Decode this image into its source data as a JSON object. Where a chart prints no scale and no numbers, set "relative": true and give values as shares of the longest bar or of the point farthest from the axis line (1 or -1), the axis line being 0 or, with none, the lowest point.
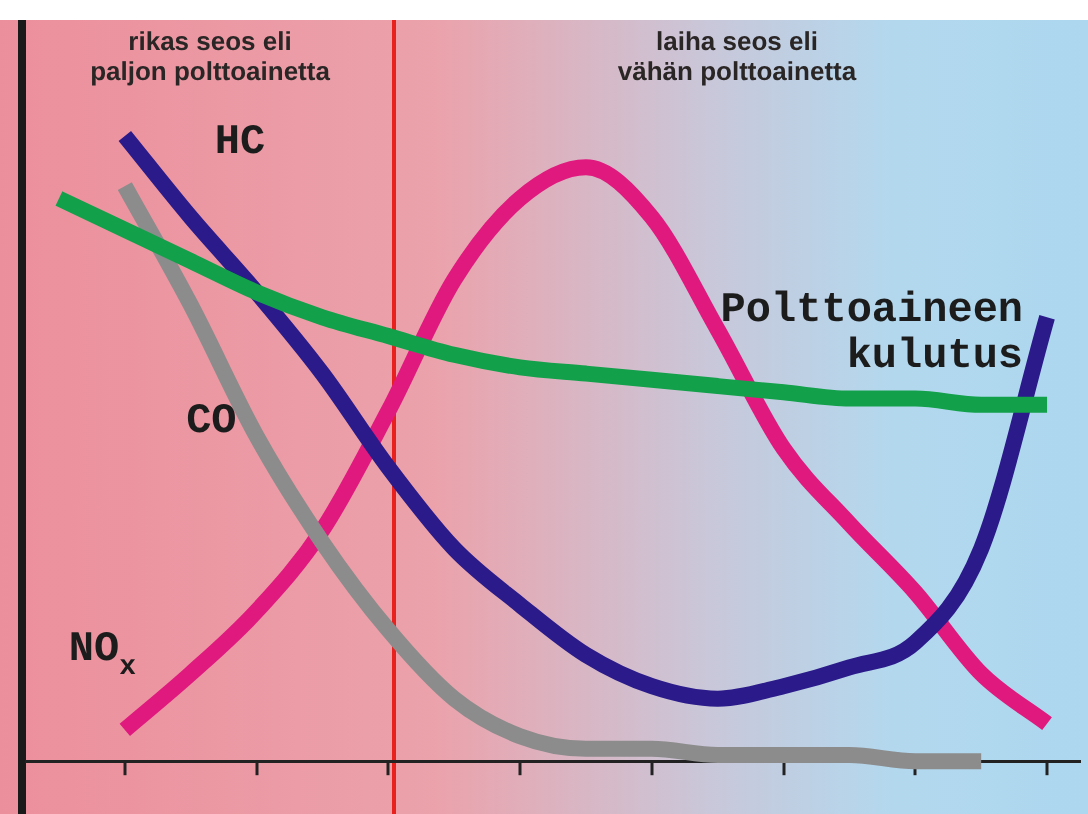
{
  "chart_data": {
    "type": "line",
    "relative": true,
    "grid": false,
    "legend": false,
    "marker": "none",
    "line_style": "solid",
    "categories": [
      null,
      null,
      null,
      null,
      null,
      null,
      null,
      null,
      null,
      null,
      null,
      null,
      null,
      null,
      null,
      null
    ],
    "series": [
      {
        "name": "Polttoaineen kulutus",
        "color": "#13a04a",
        "values": [
          0.9,
          0.85,
          0.8,
          0.75,
          0.71,
          0.68,
          0.65,
          0.63,
          0.62,
          0.61,
          0.6,
          0.59,
          0.58,
          0.58,
          0.57,
          0.57
        ]
      },
      {
        "name": "HC",
        "color": "#2a1a8a",
        "values": [
          null,
          1.0,
          0.87,
          0.75,
          0.62,
          0.47,
          0.34,
          0.25,
          0.17,
          0.12,
          0.1,
          0.12,
          0.15,
          0.19,
          0.34,
          0.71
        ]
      },
      {
        "name": "CO",
        "color": "#8c8c8c",
        "values": [
          null,
          0.92,
          0.73,
          0.52,
          0.35,
          0.21,
          0.1,
          0.04,
          0.02,
          0.02,
          0.01,
          0.01,
          0.01,
          0.0,
          0.0,
          null
        ]
      },
      {
        "name": "NO$_{x}$",
        "color": "#e0197f",
        "values": [
          null,
          0.05,
          0.14,
          0.24,
          0.37,
          0.56,
          0.77,
          0.9,
          0.95,
          0.87,
          0.69,
          0.5,
          0.38,
          0.27,
          0.14,
          0.06
        ]
      }
    ],
    "annotations": [
      "rikas seos eli\npaljon polttoainetta",
      "laiha seos eli\nvähän polttoainetta"
    ]
  }
}
